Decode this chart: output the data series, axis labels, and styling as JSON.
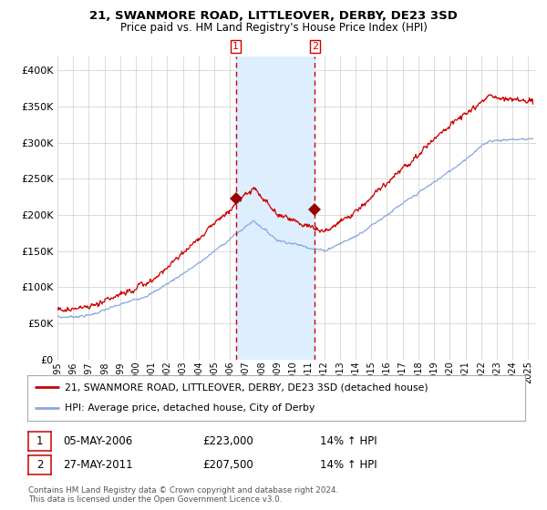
{
  "title": "21, SWANMORE ROAD, LITTLEOVER, DERBY, DE23 3SD",
  "subtitle": "Price paid vs. HM Land Registry's House Price Index (HPI)",
  "red_label": "21, SWANMORE ROAD, LITTLEOVER, DERBY, DE23 3SD (detached house)",
  "blue_label": "HPI: Average price, detached house, City of Derby",
  "sale1_date": "05-MAY-2006",
  "sale1_price": "£223,000",
  "sale1_hpi": "14% ↑ HPI",
  "sale2_date": "27-MAY-2011",
  "sale2_price": "£207,500",
  "sale2_hpi": "14% ↑ HPI",
  "footer": "Contains HM Land Registry data © Crown copyright and database right 2024.\nThis data is licensed under the Open Government Licence v3.0.",
  "ylim": [
    0,
    420000
  ],
  "sale1_x": 2006.37,
  "sale2_x": 2011.4,
  "sale1_y": 223000,
  "sale2_y": 207500,
  "shade_x1": 2006.37,
  "shade_x2": 2011.4,
  "background_color": "#ffffff",
  "grid_color": "#cccccc",
  "red_line_color": "#cc0000",
  "blue_line_color": "#88aadd",
  "shade_color": "#ddeeff",
  "dashed_color": "#cc0000",
  "xmin": 1995,
  "xmax": 2025.5
}
